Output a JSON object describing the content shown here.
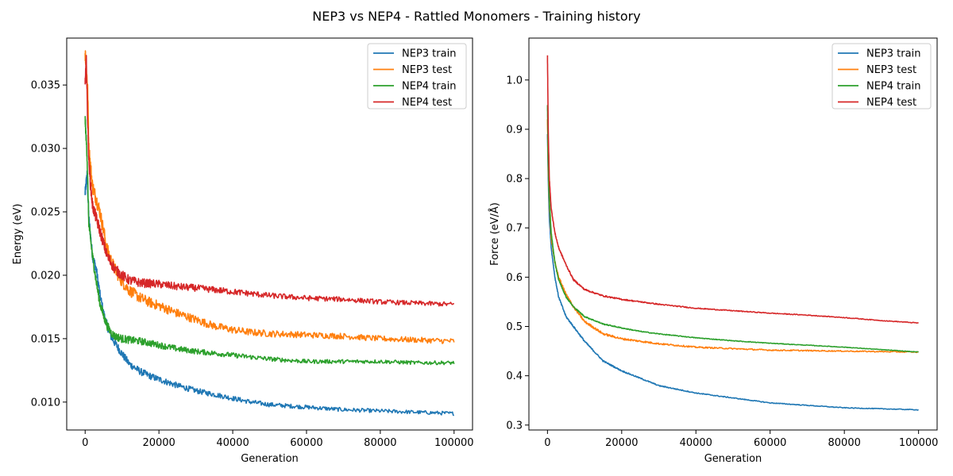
{
  "figure": {
    "title": "NEP3 vs NEP4 - Rattled Monomers - Training history"
  },
  "colors": {
    "nep3_train": "#1f77b4",
    "nep3_test": "#ff7f0e",
    "nep4_train": "#2ca02c",
    "nep4_test": "#d62728"
  },
  "chart_data": [
    {
      "type": "line",
      "title": "",
      "xlabel": "Generation",
      "ylabel": "Energy (eV)",
      "xlim": [
        -5000,
        105000
      ],
      "ylim": [
        0.0078,
        0.0387
      ],
      "xticks": [
        0,
        20000,
        40000,
        60000,
        80000,
        100000
      ],
      "xtick_labels": [
        "0",
        "20000",
        "40000",
        "60000",
        "80000",
        "100000"
      ],
      "yticks": [
        0.01,
        0.015,
        0.02,
        0.025,
        0.03,
        0.035
      ],
      "ytick_labels": [
        "0.010",
        "0.015",
        "0.020",
        "0.025",
        "0.030",
        "0.035"
      ],
      "grid": false,
      "legend": "top-right",
      "series": [
        {
          "name": "NEP3 train",
          "color": "#1f77b4",
          "x": [
            0,
            500,
            1000,
            2000,
            3000,
            4000,
            5000,
            6000,
            7000,
            8000,
            10000,
            12000,
            15000,
            18000,
            20000,
            25000,
            30000,
            35000,
            40000,
            45000,
            50000,
            60000,
            70000,
            80000,
            90000,
            100000
          ],
          "y": [
            0.0265,
            0.028,
            0.0245,
            0.0215,
            0.0205,
            0.0185,
            0.017,
            0.016,
            0.0152,
            0.0147,
            0.0138,
            0.013,
            0.0124,
            0.012,
            0.0118,
            0.0113,
            0.0109,
            0.0106,
            0.0103,
            0.01,
            0.0098,
            0.0096,
            0.0094,
            0.0093,
            0.0092,
            0.0091
          ],
          "noise": 0.0004
        },
        {
          "name": "NEP3 test",
          "color": "#ff7f0e",
          "x": [
            0,
            300,
            700,
            1000,
            1500,
            2000,
            3000,
            4000,
            5000,
            6000,
            7000,
            8000,
            10000,
            12000,
            15000,
            18000,
            20000,
            25000,
            30000,
            35000,
            40000,
            45000,
            50000,
            60000,
            70000,
            80000,
            90000,
            100000
          ],
          "y": [
            0.0375,
            0.0365,
            0.0345,
            0.03,
            0.0285,
            0.027,
            0.026,
            0.025,
            0.0235,
            0.022,
            0.0212,
            0.0205,
            0.0195,
            0.0188,
            0.0182,
            0.0178,
            0.0176,
            0.017,
            0.0165,
            0.016,
            0.0157,
            0.0155,
            0.0154,
            0.0153,
            0.0152,
            0.015,
            0.0149,
            0.0148
          ],
          "noise": 0.0006
        },
        {
          "name": "NEP4 train",
          "color": "#2ca02c",
          "x": [
            0,
            500,
            1000,
            2000,
            3000,
            4000,
            5000,
            6000,
            7000,
            8000,
            10000,
            12000,
            15000,
            20000,
            25000,
            30000,
            40000,
            50000,
            60000,
            70000,
            80000,
            90000,
            100000
          ],
          "y": [
            0.0323,
            0.0295,
            0.024,
            0.0215,
            0.0195,
            0.0178,
            0.0168,
            0.016,
            0.0155,
            0.0152,
            0.015,
            0.0149,
            0.0148,
            0.0145,
            0.0142,
            0.014,
            0.0137,
            0.0134,
            0.0132,
            0.0132,
            0.0132,
            0.0131,
            0.0131
          ],
          "noise": 0.0004
        },
        {
          "name": "NEP4 test",
          "color": "#d62728",
          "x": [
            0,
            300,
            700,
            1000,
            1500,
            2000,
            3000,
            4000,
            5000,
            6000,
            7000,
            8000,
            10000,
            12000,
            15000,
            20000,
            25000,
            30000,
            40000,
            50000,
            60000,
            70000,
            80000,
            90000,
            100000
          ],
          "y": [
            0.035,
            0.037,
            0.032,
            0.029,
            0.027,
            0.0255,
            0.0245,
            0.0235,
            0.0225,
            0.0215,
            0.021,
            0.0205,
            0.02,
            0.0196,
            0.0194,
            0.0193,
            0.0191,
            0.019,
            0.0187,
            0.0184,
            0.0182,
            0.0181,
            0.0179,
            0.0178,
            0.0177
          ],
          "noise": 0.0005
        }
      ]
    },
    {
      "type": "line",
      "title": "",
      "xlabel": "Generation",
      "ylabel": "Force (eV/Å)",
      "xlim": [
        -5000,
        105000
      ],
      "ylim": [
        0.29,
        1.085
      ],
      "xticks": [
        0,
        20000,
        40000,
        60000,
        80000,
        100000
      ],
      "xtick_labels": [
        "0",
        "20000",
        "40000",
        "60000",
        "80000",
        "100000"
      ],
      "yticks": [
        0.3,
        0.4,
        0.5,
        0.6,
        0.7,
        0.8,
        0.9,
        1.0
      ],
      "ytick_labels": [
        "0.3",
        "0.4",
        "0.5",
        "0.6",
        "0.7",
        "0.8",
        "0.9",
        "1.0"
      ],
      "grid": false,
      "legend": "top-right",
      "series": [
        {
          "name": "NEP3 train",
          "color": "#1f77b4",
          "x": [
            0,
            200,
            500,
            1000,
            2000,
            3000,
            5000,
            7000,
            10000,
            15000,
            20000,
            25000,
            30000,
            40000,
            50000,
            60000,
            70000,
            80000,
            90000,
            100000
          ],
          "y": [
            0.89,
            0.8,
            0.72,
            0.66,
            0.6,
            0.56,
            0.52,
            0.5,
            0.47,
            0.43,
            0.41,
            0.395,
            0.38,
            0.365,
            0.355,
            0.345,
            0.34,
            0.335,
            0.333,
            0.331
          ],
          "noise": 0.002
        },
        {
          "name": "NEP3 test",
          "color": "#ff7f0e",
          "x": [
            0,
            200,
            500,
            1000,
            2000,
            3000,
            5000,
            7000,
            10000,
            15000,
            20000,
            25000,
            30000,
            40000,
            50000,
            60000,
            70000,
            80000,
            90000,
            100000
          ],
          "y": [
            0.92,
            0.82,
            0.75,
            0.68,
            0.63,
            0.6,
            0.565,
            0.54,
            0.51,
            0.485,
            0.475,
            0.47,
            0.465,
            0.458,
            0.455,
            0.452,
            0.451,
            0.45,
            0.449,
            0.448
          ],
          "noise": 0.003
        },
        {
          "name": "NEP4 train",
          "color": "#2ca02c",
          "x": [
            0,
            200,
            500,
            1000,
            2000,
            3000,
            5000,
            7000,
            10000,
            15000,
            20000,
            25000,
            30000,
            40000,
            50000,
            60000,
            70000,
            80000,
            90000,
            100000
          ],
          "y": [
            0.95,
            0.83,
            0.76,
            0.69,
            0.63,
            0.595,
            0.56,
            0.54,
            0.52,
            0.505,
            0.497,
            0.49,
            0.485,
            0.477,
            0.471,
            0.466,
            0.462,
            0.458,
            0.453,
            0.448
          ],
          "noise": 0.0015
        },
        {
          "name": "NEP4 test",
          "color": "#d62728",
          "x": [
            0,
            200,
            500,
            1000,
            2000,
            3000,
            5000,
            7000,
            10000,
            15000,
            20000,
            25000,
            30000,
            40000,
            50000,
            60000,
            70000,
            80000,
            90000,
            100000
          ],
          "y": [
            1.05,
            0.9,
            0.8,
            0.74,
            0.69,
            0.66,
            0.625,
            0.595,
            0.575,
            0.562,
            0.555,
            0.55,
            0.545,
            0.537,
            0.532,
            0.527,
            0.523,
            0.518,
            0.512,
            0.507
          ],
          "noise": 0.002
        }
      ]
    }
  ]
}
